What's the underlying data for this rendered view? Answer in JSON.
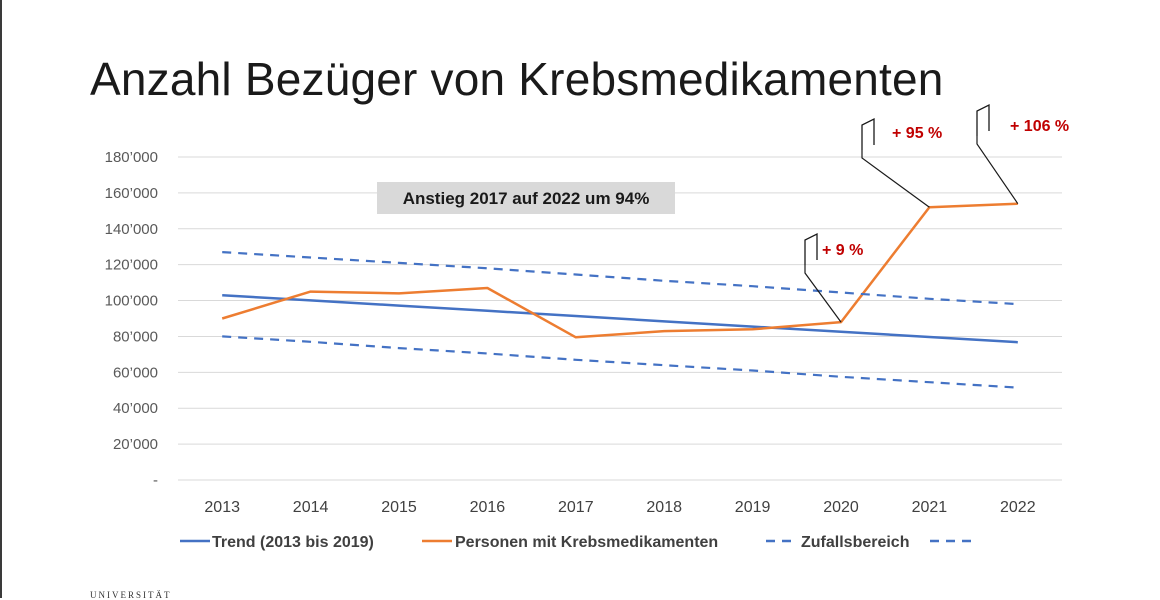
{
  "chart_data": {
    "type": "line",
    "title": "Anzahl Bezüger von Krebsmedikamenten",
    "x": [
      "2013",
      "2014",
      "2015",
      "2016",
      "2017",
      "2018",
      "2019",
      "2020",
      "2021",
      "2022"
    ],
    "ylim": [
      0,
      180000
    ],
    "yticks": [
      0,
      20000,
      40000,
      60000,
      80000,
      100000,
      120000,
      140000,
      160000,
      180000
    ],
    "ytick_labels": [
      "-",
      "20’000",
      "40’000",
      "60’000",
      "80’000",
      "100’000",
      "120’000",
      "140’000",
      "160’000",
      "180’000"
    ],
    "grid": true,
    "legend_position": "bottom",
    "series": [
      {
        "name": "Trend (2013 bis 2019)",
        "style": "solid",
        "color": "#4472c4",
        "values": [
          103000,
          100100,
          97200,
          94300,
          91400,
          88400,
          85500,
          82600,
          79700,
          76800
        ]
      },
      {
        "name": "Personen mit Krebsmedikamenten",
        "style": "solid",
        "color": "#ed7d31",
        "values": [
          90000,
          105000,
          104000,
          107000,
          79500,
          83000,
          84000,
          88000,
          152000,
          154000
        ]
      },
      {
        "name": "Zufallsbereich",
        "style": "dashed",
        "color": "#4472c4",
        "values": [
          127000,
          124000,
          121000,
          118000,
          114500,
          111000,
          108000,
          104500,
          101000,
          98000
        ]
      },
      {
        "name": "",
        "style": "dashed",
        "color": "#4472c4",
        "values": [
          80000,
          77000,
          73500,
          70500,
          67000,
          64000,
          61000,
          57500,
          54500,
          51500
        ]
      }
    ],
    "annotations": {
      "box": "Anstieg 2017 auf 2022 um 94%",
      "callouts": [
        {
          "label": "+ 9 %",
          "year": "2020"
        },
        {
          "label": "+ 95 %",
          "year": "2021"
        },
        {
          "label": "+ 106 %",
          "year": "2022"
        }
      ]
    }
  },
  "footer": {
    "text": "UNIVERSITÄT"
  }
}
